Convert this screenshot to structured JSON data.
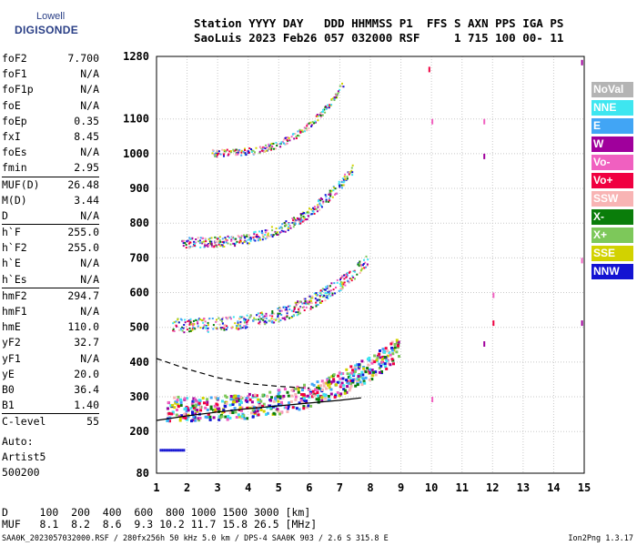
{
  "logo": {
    "line1": "Lowell",
    "line2": "DIGISONDE"
  },
  "header": {
    "line1": "Station YYYY DAY   DDD HHMMSS P1  FFS S AXN PPS IGA PS",
    "line2": "SaoLuis 2023 Feb26 057 032000 RSF     1 715 100 00- 11"
  },
  "params": [
    {
      "k": "foF2",
      "v": "7.700"
    },
    {
      "k": "foF1",
      "v": "N/A"
    },
    {
      "k": "foF1p",
      "v": "N/A"
    },
    {
      "k": "foE",
      "v": "N/A"
    },
    {
      "k": "foEp",
      "v": "0.35"
    },
    {
      "k": "fxI",
      "v": "8.45"
    },
    {
      "k": "foEs",
      "v": "N/A"
    },
    {
      "k": "fmin",
      "v": "2.95"
    },
    {
      "k": "MUF(D)",
      "v": "26.48"
    },
    {
      "k": "M(D)",
      "v": "3.44"
    },
    {
      "k": "D",
      "v": "N/A"
    },
    {
      "k": "h`F",
      "v": "255.0"
    },
    {
      "k": "h`F2",
      "v": "255.0"
    },
    {
      "k": "h`E",
      "v": "N/A"
    },
    {
      "k": "h`Es",
      "v": "N/A"
    },
    {
      "k": "hmF2",
      "v": "294.7"
    },
    {
      "k": "hmF1",
      "v": "N/A"
    },
    {
      "k": "hmE",
      "v": "110.0"
    },
    {
      "k": "yF2",
      "v": "32.7"
    },
    {
      "k": "yF1",
      "v": "N/A"
    },
    {
      "k": "yE",
      "v": "20.0"
    },
    {
      "k": "B0",
      "v": "36.4"
    },
    {
      "k": "B1",
      "v": "1.40"
    },
    {
      "k": "C-level",
      "v": "55"
    }
  ],
  "info": {
    "line1": "Auto:",
    "line2": "Artist5",
    "line3": "500200"
  },
  "muf_table": {
    "d_row": "D     100  200  400  600  800 1000 1500 3000 [km]",
    "muf_row": "MUF   8.1  8.2  8.6  9.3 10.2 11.7 15.8 26.5 [MHz]"
  },
  "footer": {
    "left": "SAA0K_2023057032000.RSF / 280fx256h 50 kHz 5.0 km / DPS-4 SAA0K 903 / 2.6 S 315.8 E",
    "right": "Ion2Png 1.3.17"
  },
  "legend": [
    {
      "label": "NoVal",
      "color": "#b4b4b4"
    },
    {
      "label": "NNE",
      "color": "#3ee6f0"
    },
    {
      "label": "E",
      "color": "#41a5f5"
    },
    {
      "label": "W",
      "color": "#a0009c"
    },
    {
      "label": "Vo-",
      "color": "#f060c0"
    },
    {
      "label": "Vo+",
      "color": "#f00040"
    },
    {
      "label": "SSW",
      "color": "#f8b4b4"
    },
    {
      "label": "X-",
      "color": "#0a7d0a"
    },
    {
      "label": "X+",
      "color": "#7dc85a"
    },
    {
      "label": "SSE",
      "color": "#d2d200"
    },
    {
      "label": "NNW",
      "color": "#1414d2"
    }
  ],
  "chart_data": {
    "type": "scatter",
    "x_ticks": [
      1,
      2,
      3,
      4,
      5,
      6,
      7,
      8,
      9,
      10,
      11,
      12,
      13,
      14,
      15
    ],
    "y_ticks": [
      80,
      200,
      300,
      400,
      500,
      600,
      700,
      800,
      900,
      1000,
      1100,
      1280
    ],
    "xlim": [
      1,
      15
    ],
    "ylim": [
      80,
      1280
    ],
    "grid": true,
    "legend_position": "right",
    "traces": [
      {
        "name": "",
        "kind": "solid",
        "points": [
          [
            1,
            232
          ],
          [
            2,
            245
          ],
          [
            3,
            256
          ],
          [
            4,
            266
          ],
          [
            5,
            274
          ],
          [
            6,
            282
          ],
          [
            7,
            290
          ],
          [
            7.7,
            297
          ]
        ]
      },
      {
        "name": "",
        "kind": "dashed",
        "points": [
          [
            1,
            410
          ],
          [
            2,
            380
          ],
          [
            3,
            355
          ],
          [
            4,
            338
          ],
          [
            5,
            330
          ],
          [
            6,
            325
          ]
        ]
      }
    ],
    "echo_bands": [
      {
        "f": [
          1.3,
          8.9
        ],
        "h0": 255,
        "h1": 430,
        "hcurve": 70,
        "density": 600
      },
      {
        "f": [
          1.5,
          7.9
        ],
        "h0": 500,
        "h1": 690,
        "hcurve": 40,
        "density": 450
      },
      {
        "f": [
          1.8,
          7.4
        ],
        "h0": 740,
        "h1": 950,
        "hcurve": 30,
        "density": 380
      },
      {
        "f": [
          2.8,
          7.1
        ],
        "h0": 1000,
        "h1": 1200,
        "hcurve": 20,
        "density": 220
      }
    ]
  }
}
